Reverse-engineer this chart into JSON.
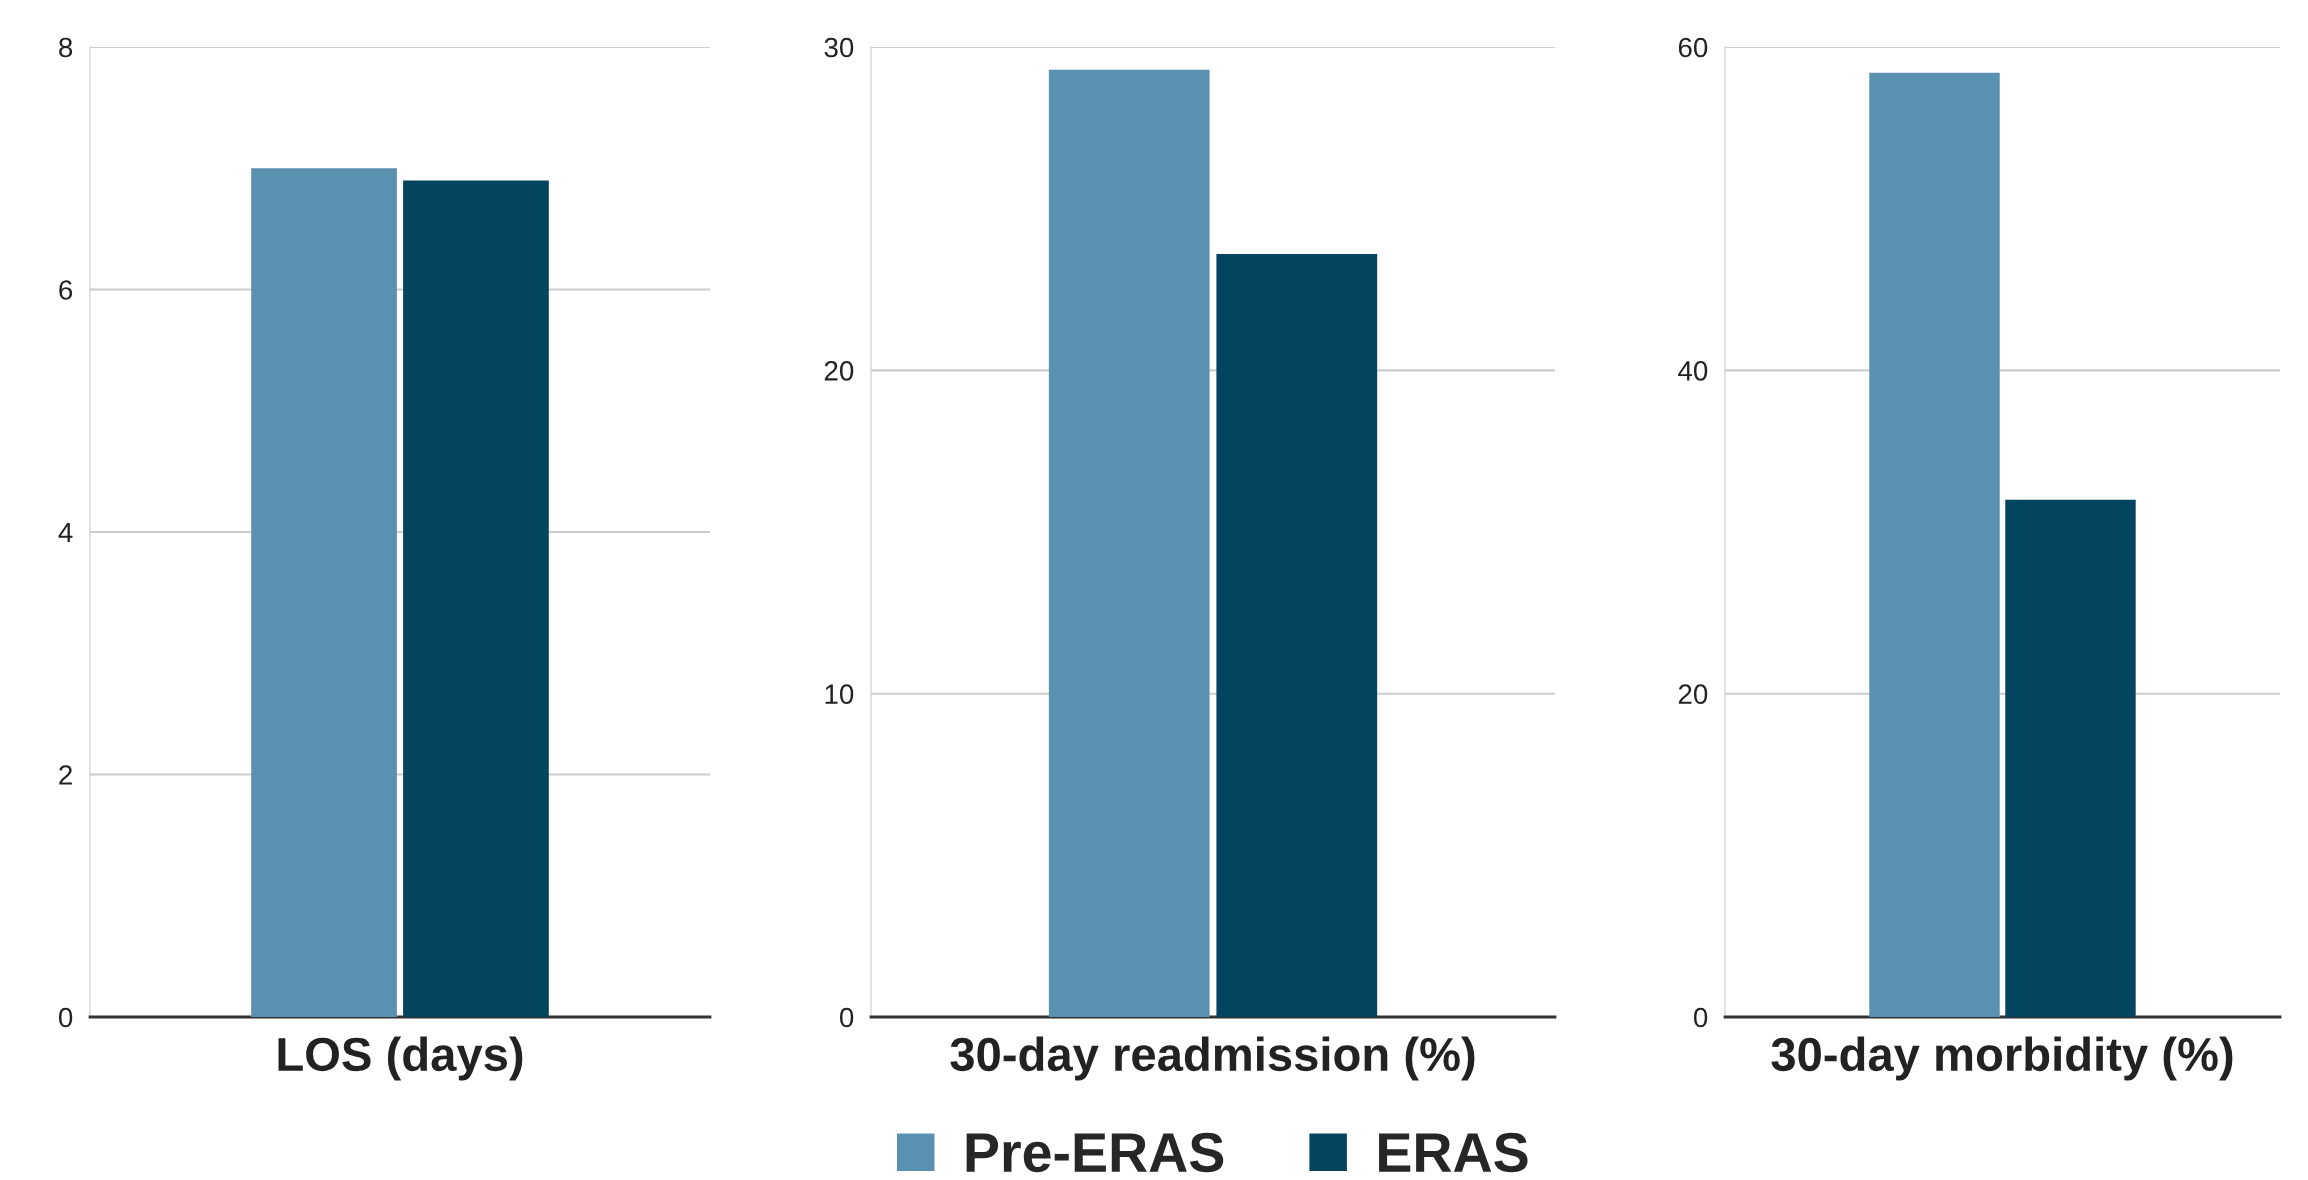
{
  "chart_data": [
    {
      "type": "bar",
      "categories": [
        "LOS (days)"
      ],
      "series": [
        {
          "color": "#5a91b0",
          "values": [
            7.0
          ]
        },
        {
          "color": "#03445f",
          "values": [
            6.9
          ]
        }
      ],
      "ylim": [
        0,
        8
      ],
      "yticks": [
        0,
        2,
        4,
        6,
        8
      ],
      "grid": "y"
    },
    {
      "type": "bar",
      "categories": [
        "30-day readmission (%)"
      ],
      "series": [
        {
          "name": "Pre-ERAS",
          "color": "#5a91b0",
          "values": [
            29.3
          ]
        },
        {
          "name": "ERAS",
          "color": "#03445f",
          "values": [
            23.6
          ]
        }
      ],
      "ylim": [
        0,
        30
      ],
      "yticks": [
        0,
        10,
        20,
        30
      ],
      "grid": "y",
      "legend": "bottom"
    },
    {
      "type": "bar",
      "categories": [
        "30-day morbidity (%)"
      ],
      "series": [
        {
          "color": "#5a91b0",
          "values": [
            58.4
          ]
        },
        {
          "color": "#03445f",
          "values": [
            32.0
          ]
        }
      ],
      "ylim": [
        0,
        60
      ],
      "yticks": [
        0,
        20,
        40,
        60
      ],
      "grid": "y"
    }
  ]
}
